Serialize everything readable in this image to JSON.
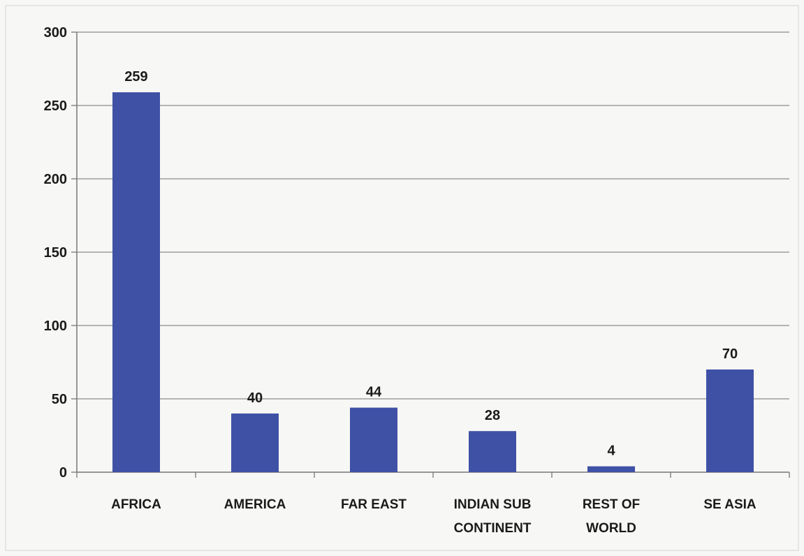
{
  "chart_data": {
    "type": "bar",
    "title": "",
    "xlabel": "",
    "ylabel": "",
    "categories": [
      [
        "AFRICA"
      ],
      [
        "AMERICA"
      ],
      [
        "FAR EAST"
      ],
      [
        "INDIAN SUB",
        "CONTINENT"
      ],
      [
        "REST OF",
        "WORLD"
      ],
      [
        "SE ASIA"
      ]
    ],
    "values": [
      259,
      40,
      44,
      28,
      4,
      70
    ],
    "data_labels": [
      "259",
      "40",
      "44",
      "28",
      "4",
      "70"
    ],
    "ylim": [
      0,
      300
    ],
    "yticks": [
      0,
      50,
      100,
      150,
      200,
      250,
      300
    ],
    "ytick_labels": [
      "0",
      "50",
      "100",
      "150",
      "200",
      "250",
      "300"
    ],
    "grid": true,
    "legend": "none",
    "bar_color": "#3f51a5",
    "gridline_color": "#8c8c8c"
  }
}
